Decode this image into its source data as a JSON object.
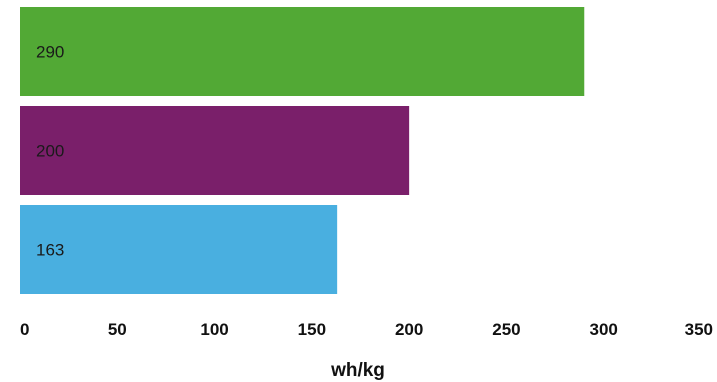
{
  "chart_data": {
    "type": "bar",
    "orientation": "horizontal",
    "values": [
      290,
      200,
      163
    ],
    "value_labels": [
      "290",
      "200",
      "163"
    ],
    "bar_colors": [
      "#52a935",
      "#7a1f6a",
      "#49afe0"
    ],
    "xlabel": "wh/kg",
    "xlim": [
      0,
      350
    ],
    "x_ticks": [
      "0",
      "50",
      "100",
      "150",
      "200",
      "250",
      "300",
      "350"
    ],
    "grid": false,
    "legend": "none"
  }
}
